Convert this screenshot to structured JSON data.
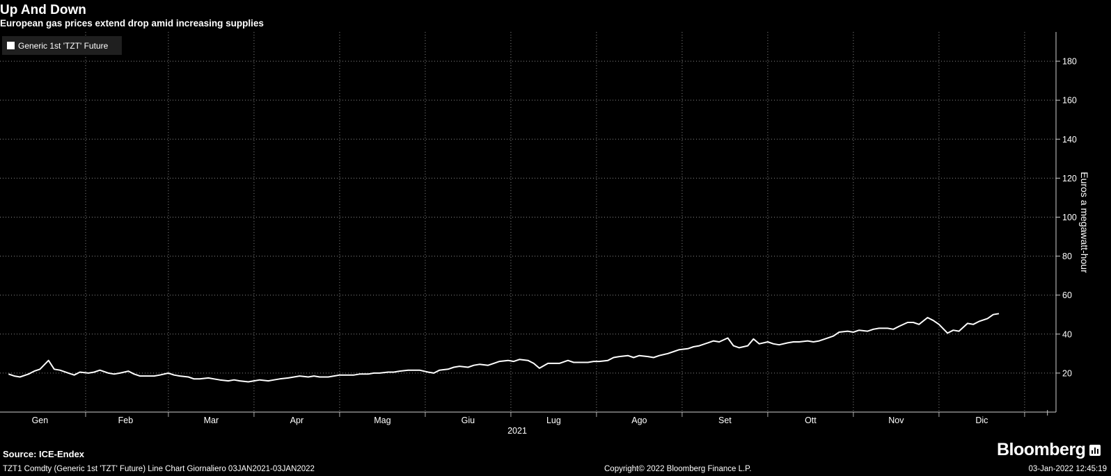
{
  "chart_data": {
    "type": "line",
    "title": "Up And Down",
    "subtitle": "European gas prices extend drop amid increasing supplies",
    "ylabel": "Euros a megawatt-hour",
    "xlabel": "2021",
    "ylim": [
      0,
      195
    ],
    "y_ticks": [
      20,
      40,
      60,
      80,
      100,
      120,
      140,
      160,
      180
    ],
    "x_range": [
      "2021-01-01",
      "2022-01-06"
    ],
    "x_ticks": [
      {
        "label": "Gen",
        "date": "2021-01-15"
      },
      {
        "label": "Feb",
        "date": "2021-02-14"
      },
      {
        "label": "Mar",
        "date": "2021-03-16"
      },
      {
        "label": "Apr",
        "date": "2021-04-15"
      },
      {
        "label": "Mag",
        "date": "2021-05-15"
      },
      {
        "label": "Giu",
        "date": "2021-06-14"
      },
      {
        "label": "Lug",
        "date": "2021-07-14"
      },
      {
        "label": "Ago",
        "date": "2021-08-13"
      },
      {
        "label": "Set",
        "date": "2021-09-12"
      },
      {
        "label": "Ott",
        "date": "2021-10-12"
      },
      {
        "label": "Nov",
        "date": "2021-11-11"
      },
      {
        "label": "Dic",
        "date": "2021-12-11"
      }
    ],
    "month_boundaries": [
      "2021-01-31",
      "2021-03-01",
      "2021-03-31",
      "2021-04-30",
      "2021-05-30",
      "2021-06-29",
      "2021-07-29",
      "2021-08-28",
      "2021-09-27",
      "2021-10-27",
      "2021-11-26",
      "2021-12-26"
    ],
    "grid": true,
    "legend_position": "top-left",
    "series": [
      {
        "name": "Generic 1st 'TZT' Future",
        "color": "#ffffff",
        "points": [
          [
            "2021-01-04",
            19.5
          ],
          [
            "2021-01-06",
            18.5
          ],
          [
            "2021-01-08",
            18.0
          ],
          [
            "2021-01-11",
            19.5
          ],
          [
            "2021-01-13",
            21.0
          ],
          [
            "2021-01-15",
            22.0
          ],
          [
            "2021-01-18",
            26.5
          ],
          [
            "2021-01-20",
            22.0
          ],
          [
            "2021-01-22",
            21.5
          ],
          [
            "2021-01-25",
            20.0
          ],
          [
            "2021-01-27",
            19.0
          ],
          [
            "2021-01-29",
            20.5
          ],
          [
            "2021-02-01",
            20.0
          ],
          [
            "2021-02-03",
            20.5
          ],
          [
            "2021-02-05",
            21.5
          ],
          [
            "2021-02-08",
            20.0
          ],
          [
            "2021-02-10",
            19.5
          ],
          [
            "2021-02-12",
            20.0
          ],
          [
            "2021-02-15",
            21.0
          ],
          [
            "2021-02-17",
            19.5
          ],
          [
            "2021-02-19",
            18.5
          ],
          [
            "2021-02-22",
            18.5
          ],
          [
            "2021-02-24",
            18.5
          ],
          [
            "2021-02-26",
            19.0
          ],
          [
            "2021-03-01",
            20.0
          ],
          [
            "2021-03-03",
            19.0
          ],
          [
            "2021-03-05",
            18.5
          ],
          [
            "2021-03-08",
            18.0
          ],
          [
            "2021-03-10",
            17.0
          ],
          [
            "2021-03-12",
            17.0
          ],
          [
            "2021-03-15",
            17.5
          ],
          [
            "2021-03-17",
            17.0
          ],
          [
            "2021-03-19",
            16.5
          ],
          [
            "2021-03-22",
            16.0
          ],
          [
            "2021-03-24",
            16.5
          ],
          [
            "2021-03-26",
            16.0
          ],
          [
            "2021-03-29",
            15.5
          ],
          [
            "2021-03-31",
            16.0
          ],
          [
            "2021-04-02",
            16.5
          ],
          [
            "2021-04-05",
            16.0
          ],
          [
            "2021-04-07",
            16.5
          ],
          [
            "2021-04-09",
            17.0
          ],
          [
            "2021-04-12",
            17.5
          ],
          [
            "2021-04-14",
            18.0
          ],
          [
            "2021-04-16",
            18.5
          ],
          [
            "2021-04-19",
            18.0
          ],
          [
            "2021-04-21",
            18.5
          ],
          [
            "2021-04-23",
            18.0
          ],
          [
            "2021-04-26",
            18.0
          ],
          [
            "2021-04-28",
            18.5
          ],
          [
            "2021-04-30",
            19.0
          ],
          [
            "2021-05-03",
            19.0
          ],
          [
            "2021-05-05",
            19.0
          ],
          [
            "2021-05-07",
            19.5
          ],
          [
            "2021-05-10",
            19.5
          ],
          [
            "2021-05-12",
            20.0
          ],
          [
            "2021-05-14",
            20.0
          ],
          [
            "2021-05-17",
            20.5
          ],
          [
            "2021-05-19",
            20.5
          ],
          [
            "2021-05-21",
            21.0
          ],
          [
            "2021-05-24",
            21.5
          ],
          [
            "2021-05-26",
            21.5
          ],
          [
            "2021-05-28",
            21.5
          ],
          [
            "2021-05-31",
            20.5
          ],
          [
            "2021-06-02",
            20.0
          ],
          [
            "2021-06-04",
            21.5
          ],
          [
            "2021-06-07",
            22.0
          ],
          [
            "2021-06-09",
            23.0
          ],
          [
            "2021-06-11",
            23.5
          ],
          [
            "2021-06-14",
            23.0
          ],
          [
            "2021-06-16",
            24.0
          ],
          [
            "2021-06-18",
            24.5
          ],
          [
            "2021-06-21",
            24.0
          ],
          [
            "2021-06-23",
            25.0
          ],
          [
            "2021-06-25",
            26.0
          ],
          [
            "2021-06-28",
            26.5
          ],
          [
            "2021-06-30",
            26.0
          ],
          [
            "2021-07-02",
            27.0
          ],
          [
            "2021-07-05",
            26.5
          ],
          [
            "2021-07-07",
            25.0
          ],
          [
            "2021-07-09",
            22.5
          ],
          [
            "2021-07-12",
            25.0
          ],
          [
            "2021-07-14",
            25.0
          ],
          [
            "2021-07-16",
            25.0
          ],
          [
            "2021-07-19",
            26.5
          ],
          [
            "2021-07-21",
            25.5
          ],
          [
            "2021-07-23",
            25.5
          ],
          [
            "2021-07-26",
            25.5
          ],
          [
            "2021-07-28",
            26.0
          ],
          [
            "2021-07-30",
            26.0
          ],
          [
            "2021-08-02",
            26.5
          ],
          [
            "2021-08-04",
            28.0
          ],
          [
            "2021-08-06",
            28.5
          ],
          [
            "2021-08-09",
            29.0
          ],
          [
            "2021-08-11",
            28.0
          ],
          [
            "2021-08-13",
            29.0
          ],
          [
            "2021-08-16",
            28.5
          ],
          [
            "2021-08-18",
            28.0
          ],
          [
            "2021-08-20",
            29.0
          ],
          [
            "2021-08-23",
            30.0
          ],
          [
            "2021-08-25",
            31.0
          ],
          [
            "2021-08-27",
            32.0
          ],
          [
            "2021-08-30",
            32.5
          ],
          [
            "2021-09-01",
            33.5
          ],
          [
            "2021-09-03",
            34.0
          ],
          [
            "2021-09-06",
            35.5
          ],
          [
            "2021-09-08",
            36.5
          ],
          [
            "2021-09-10",
            36.0
          ],
          [
            "2021-09-13",
            38.0
          ],
          [
            "2021-09-15",
            34.0
          ],
          [
            "2021-09-17",
            33.0
          ],
          [
            "2021-09-20",
            34.0
          ],
          [
            "2021-09-22",
            37.5
          ],
          [
            "2021-09-24",
            35.0
          ],
          [
            "2021-09-27",
            36.0
          ],
          [
            "2021-09-29",
            35.0
          ],
          [
            "2021-10-01",
            34.5
          ],
          [
            "2021-10-04",
            35.5
          ],
          [
            "2021-10-06",
            36.0
          ],
          [
            "2021-10-08",
            36.0
          ],
          [
            "2021-10-11",
            36.5
          ],
          [
            "2021-10-13",
            36.0
          ],
          [
            "2021-10-15",
            36.5
          ],
          [
            "2021-10-18",
            38.0
          ],
          [
            "2021-10-20",
            39.0
          ],
          [
            "2021-10-22",
            41.0
          ],
          [
            "2021-10-25",
            41.5
          ],
          [
            "2021-10-27",
            41.0
          ],
          [
            "2021-10-29",
            42.0
          ],
          [
            "2021-11-01",
            41.5
          ],
          [
            "2021-11-03",
            42.5
          ],
          [
            "2021-11-05",
            43.0
          ],
          [
            "2021-11-08",
            43.0
          ],
          [
            "2021-11-10",
            42.5
          ],
          [
            "2021-11-12",
            44.0
          ],
          [
            "2021-11-15",
            46.0
          ],
          [
            "2021-11-17",
            46.0
          ],
          [
            "2021-11-19",
            45.0
          ],
          [
            "2021-11-22",
            48.5
          ],
          [
            "2021-11-24",
            47.0
          ],
          [
            "2021-11-26",
            45.0
          ],
          [
            "2021-11-29",
            40.5
          ],
          [
            "2021-12-01",
            42.0
          ],
          [
            "2021-12-03",
            41.5
          ],
          [
            "2021-12-06",
            45.5
          ],
          [
            "2021-12-08",
            45.0
          ],
          [
            "2021-12-10",
            46.5
          ],
          [
            "2021-12-13",
            48.0
          ],
          [
            "2021-12-15",
            50.0
          ],
          [
            "2021-12-17",
            50.5
          ]
        ]
      }
    ],
    "note": ""
  },
  "legend": {
    "label": "Generic 1st 'TZT' Future"
  },
  "source": "Source: ICE-Endex",
  "footer": {
    "left": "TZT1 Comdty (Generic 1st 'TZT' Future) Line Chart  Giornaliero 03JAN2021-03JAN2022",
    "middle": "Copyright© 2022 Bloomberg Finance L.P.",
    "right": "03-Jan-2022 12:45:19"
  },
  "brand": "Bloomberg"
}
